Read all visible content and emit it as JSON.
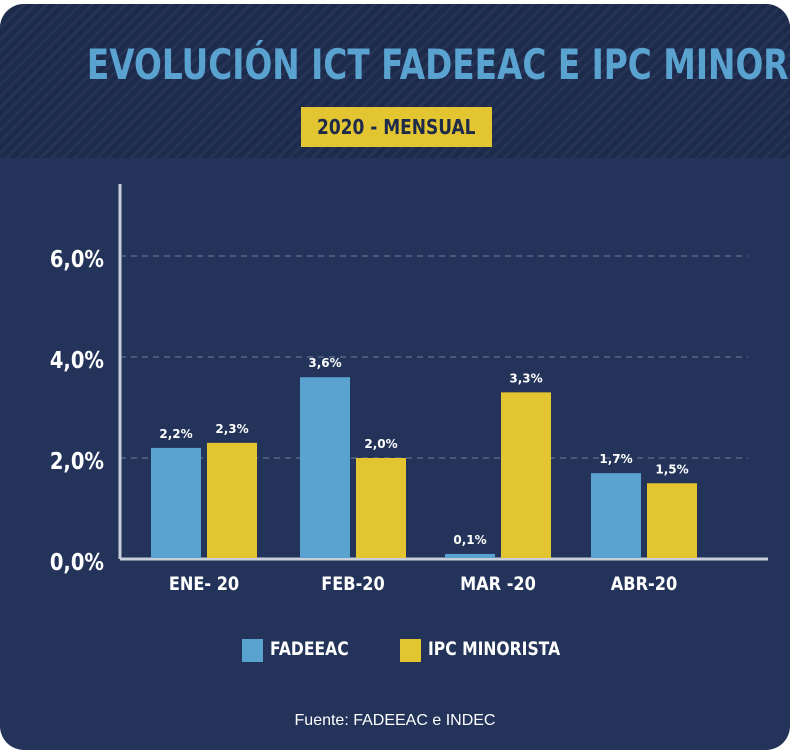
{
  "title": "EVOLUCIÓN ICT FADEEAC E IPC MINORISTA",
  "subtitle": "2020 - MENSUAL",
  "source": "Fuente: FADEEAC e INDEC",
  "colors": {
    "background": "#23335a",
    "header": "#1c2a4c",
    "fadeeac": "#5aa2cf",
    "ipc": "#e3c531",
    "title": "#5aa2cf"
  },
  "chart_data": {
    "type": "bar",
    "categories": [
      "ENE- 20",
      "FEB-20",
      "MAR -20",
      "ABR-20"
    ],
    "series": [
      {
        "name": "FADEEAC",
        "values": [
          2.2,
          3.6,
          0.1,
          1.7
        ],
        "labels": [
          "2,2%",
          "3,6%",
          "0,1%",
          "1,7%"
        ],
        "color": "#5aa2cf"
      },
      {
        "name": "IPC MINORISTA",
        "values": [
          2.3,
          2.0,
          3.3,
          1.5
        ],
        "labels": [
          "2,3%",
          "2,0%",
          "3,3%",
          "1,5%"
        ],
        "color": "#e3c531"
      }
    ],
    "yticks": [
      0,
      2,
      4,
      6
    ],
    "ytick_labels": [
      "0,0%",
      "2,0%",
      "4,0%",
      "6,0%"
    ],
    "ylim": [
      0,
      7.2
    ],
    "grid": "dashed horizontal",
    "legend": "bottom"
  }
}
